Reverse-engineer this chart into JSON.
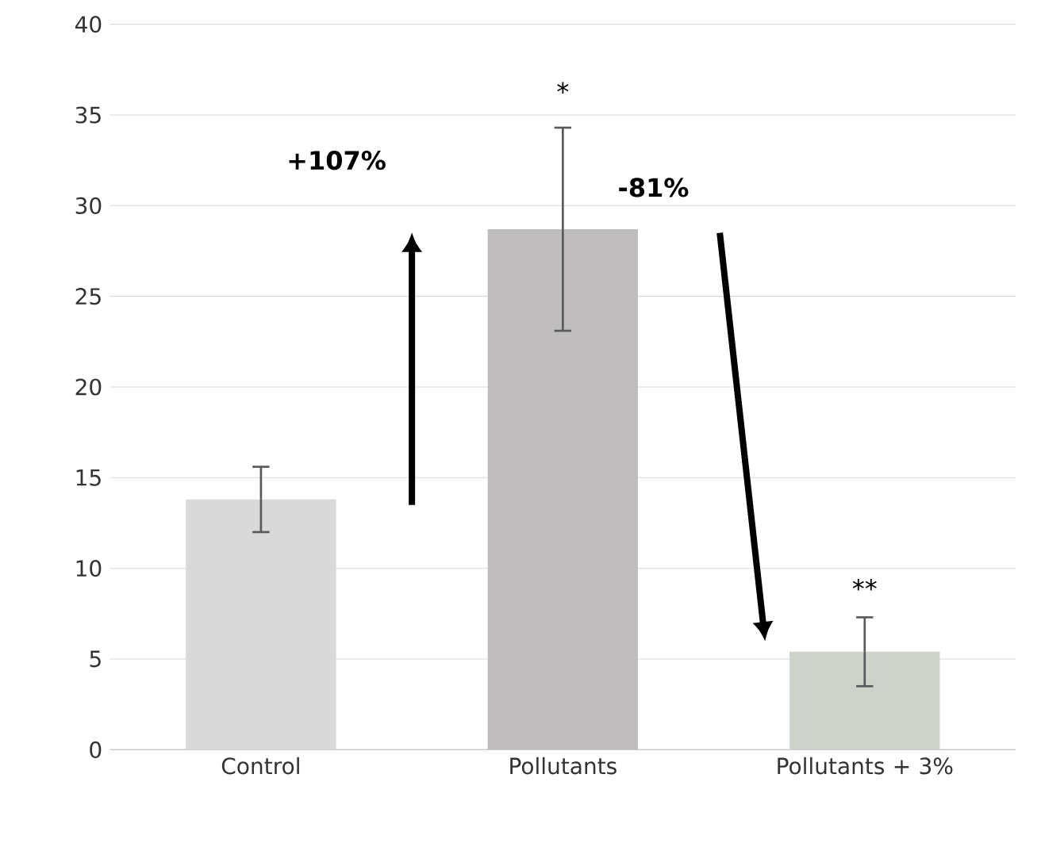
{
  "chart_data": {
    "type": "bar",
    "categories": [
      "Control",
      "Pollutants",
      "Pollutants + 3%"
    ],
    "values": [
      13.8,
      28.7,
      5.4
    ],
    "colors": [
      "#d9d9d9",
      "#bfbdbe",
      "#cdd3cb"
    ],
    "errors": [
      1.8,
      5.6,
      1.9
    ],
    "ylim": [
      0,
      40
    ],
    "yticks": [
      0,
      5,
      10,
      15,
      20,
      25,
      30,
      35,
      40
    ],
    "grid": "y",
    "annotations": [
      "*",
      "**",
      "+107%",
      "-81%"
    ]
  }
}
